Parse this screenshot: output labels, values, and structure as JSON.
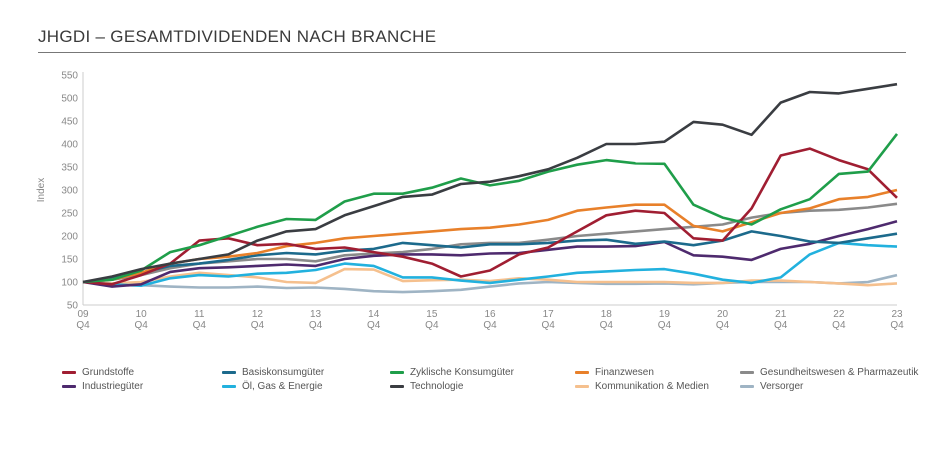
{
  "header": {
    "title": "JHGDI – GESAMTDIVIDENDEN NACH BRANCHE"
  },
  "chart_data": {
    "type": "line",
    "title": "",
    "xlabel": "",
    "ylabel": "Index",
    "ylim": [
      50,
      550
    ],
    "yticks": [
      50,
      100,
      150,
      200,
      250,
      300,
      350,
      400,
      450,
      500,
      550
    ],
    "xticks": [
      [
        "09",
        "Q4"
      ],
      [
        "10",
        "Q4"
      ],
      [
        "11",
        "Q4"
      ],
      [
        "12",
        "Q4"
      ],
      [
        "13",
        "Q4"
      ],
      [
        "14",
        "Q4"
      ],
      [
        "15",
        "Q4"
      ],
      [
        "16",
        "Q4"
      ],
      [
        "17",
        "Q4"
      ],
      [
        "18",
        "Q4"
      ],
      [
        "19",
        "Q4"
      ],
      [
        "20",
        "Q4"
      ],
      [
        "21",
        "Q4"
      ],
      [
        "22",
        "Q4"
      ],
      [
        "23",
        "Q4"
      ]
    ],
    "x": [
      "09Q4",
      "10Q2",
      "10Q4",
      "11Q2",
      "11Q4",
      "12Q2",
      "12Q4",
      "13Q2",
      "13Q4",
      "14Q2",
      "14Q4",
      "15Q2",
      "15Q4",
      "16Q2",
      "16Q4",
      "17Q2",
      "17Q4",
      "18Q2",
      "18Q4",
      "19Q2",
      "19Q4",
      "20Q2",
      "20Q4",
      "21Q2",
      "21Q4",
      "22Q2",
      "22Q4",
      "23Q2",
      "23Q4"
    ],
    "grid": false,
    "legend_position": "bottom",
    "series": [
      {
        "name": "Grundstoffe",
        "color": "#a01e32",
        "values": [
          100,
          95,
          115,
          140,
          190,
          195,
          180,
          183,
          172,
          175,
          165,
          155,
          140,
          112,
          125,
          160,
          175,
          210,
          245,
          255,
          250,
          195,
          190,
          260,
          375,
          390,
          365,
          345,
          283
        ]
      },
      {
        "name": "Basiskonsumgüter",
        "color": "#1c6a8c",
        "values": [
          100,
          108,
          120,
          135,
          140,
          148,
          158,
          163,
          160,
          168,
          172,
          185,
          180,
          175,
          182,
          182,
          185,
          190,
          192,
          183,
          188,
          180,
          190,
          210,
          200,
          188,
          185,
          195,
          205
        ]
      },
      {
        "name": "Zyklische Konsumgüter",
        "color": "#1f9e4a",
        "values": [
          100,
          105,
          125,
          165,
          180,
          200,
          220,
          237,
          235,
          275,
          292,
          292,
          305,
          325,
          310,
          320,
          340,
          355,
          365,
          358,
          357,
          268,
          240,
          225,
          258,
          280,
          335,
          340,
          422
        ]
      },
      {
        "name": "Finanzwesen",
        "color": "#e8802a",
        "values": [
          100,
          105,
          120,
          140,
          150,
          155,
          163,
          178,
          185,
          195,
          200,
          205,
          210,
          215,
          218,
          225,
          235,
          255,
          262,
          268,
          268,
          222,
          210,
          230,
          250,
          260,
          280,
          285,
          300
        ]
      },
      {
        "name": "Gesundheitswesen & Pharmazeutik",
        "color": "#8a8a8a",
        "values": [
          100,
          105,
          115,
          130,
          140,
          145,
          150,
          150,
          145,
          158,
          162,
          165,
          172,
          182,
          185,
          185,
          192,
          200,
          205,
          210,
          215,
          220,
          225,
          240,
          250,
          255,
          257,
          262,
          270
        ]
      },
      {
        "name": "Industriegüter",
        "color": "#4e2a6e",
        "values": [
          100,
          90,
          95,
          122,
          130,
          132,
          135,
          138,
          135,
          150,
          157,
          160,
          160,
          158,
          162,
          163,
          170,
          177,
          177,
          178,
          187,
          158,
          155,
          148,
          172,
          183,
          200,
          215,
          232
        ]
      },
      {
        "name": "Öl, Gas & Energie",
        "color": "#22b1de",
        "values": [
          100,
          95,
          92,
          108,
          115,
          112,
          118,
          120,
          126,
          140,
          135,
          110,
          110,
          103,
          98,
          105,
          112,
          120,
          123,
          126,
          128,
          118,
          105,
          98,
          110,
          160,
          185,
          180,
          177
        ]
      },
      {
        "name": "Technologie",
        "color": "#3a3d42",
        "values": [
          100,
          112,
          128,
          140,
          150,
          160,
          190,
          210,
          215,
          245,
          265,
          285,
          290,
          313,
          318,
          330,
          345,
          370,
          400,
          400,
          405,
          448,
          442,
          420,
          490,
          513,
          510,
          520,
          530
        ]
      },
      {
        "name": "Kommunikation & Medien",
        "color": "#f5c08e",
        "values": [
          100,
          97,
          100,
          112,
          120,
          115,
          110,
          100,
          98,
          128,
          127,
          102,
          104,
          105,
          102,
          108,
          105,
          100,
          100,
          100,
          100,
          98,
          98,
          103,
          103,
          100,
          97,
          93,
          97
        ]
      },
      {
        "name": "Versorger",
        "color": "#9fb4c4",
        "values": [
          100,
          97,
          93,
          90,
          88,
          88,
          90,
          87,
          88,
          85,
          80,
          78,
          80,
          83,
          90,
          97,
          100,
          98,
          96,
          96,
          97,
          95,
          98,
          100,
          100,
          100,
          97,
          100,
          115
        ]
      }
    ]
  }
}
